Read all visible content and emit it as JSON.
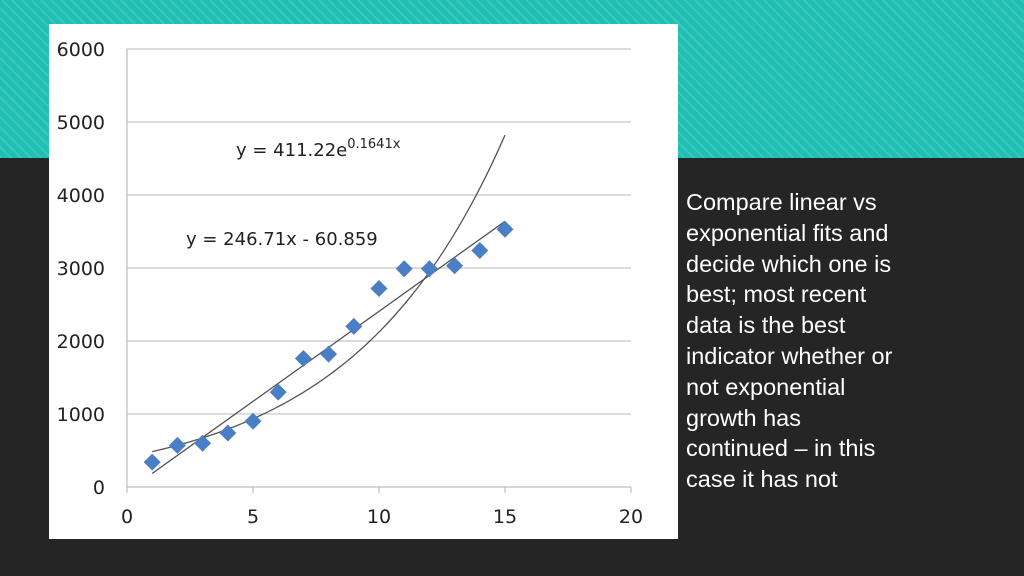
{
  "colors": {
    "accent": "#1fbfb4",
    "background": "#252525",
    "marker": "#4a7fc6",
    "trendline": "#555555",
    "text": "#ffffff"
  },
  "side_text": "Compare linear vs\nexponential fits and\ndecide which one is\nbest;  most recent\ndata is the best\nindicator whether or\nnot exponential\ngrowth has\ncontinued – in this\ncase it has not",
  "chart_data": {
    "type": "scatter",
    "title": "",
    "xlabel": "",
    "ylabel": "",
    "xlim": [
      0,
      20
    ],
    "ylim": [
      0,
      6000
    ],
    "x_ticks": [
      0,
      5,
      10,
      15,
      20
    ],
    "y_ticks": [
      0,
      1000,
      2000,
      3000,
      4000,
      5000,
      6000
    ],
    "grid": "horizontal",
    "series": [
      {
        "marker": "diamond",
        "x": [
          1,
          2,
          3,
          4,
          5,
          6,
          7,
          8,
          9,
          10,
          11,
          12,
          13,
          14,
          15
        ],
        "y": [
          340,
          570,
          600,
          740,
          900,
          1300,
          1760,
          1820,
          2200,
          2720,
          2990,
          2990,
          3030,
          3240,
          3530
        ]
      }
    ],
    "trendlines": [
      {
        "type": "linear",
        "slope": 246.71,
        "intercept": -60.859,
        "x_range": [
          1,
          15
        ],
        "label": "y = 246.71x - 60.859"
      },
      {
        "type": "exponential",
        "a": 411.22,
        "b": 0.1641,
        "x_range": [
          1,
          15
        ],
        "label_base": "y = 411.22e",
        "label_exp": "0.1641x"
      }
    ]
  }
}
